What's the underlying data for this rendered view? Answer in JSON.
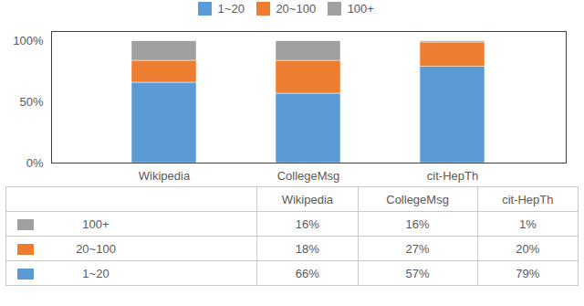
{
  "chart_data": {
    "type": "bar",
    "stacked": true,
    "categories": [
      "Wikipedia",
      "CollegeMsg",
      "cit-HepTh"
    ],
    "series": [
      {
        "name": "1~20",
        "color": "#5B9BD5",
        "values": [
          66,
          57,
          79
        ],
        "value_labels": [
          "66%",
          "57%",
          "79%"
        ]
      },
      {
        "name": "20~100",
        "color": "#ED7D31",
        "values": [
          18,
          27,
          20
        ],
        "value_labels": [
          "18%",
          "27%",
          "20%"
        ]
      },
      {
        "name": "100+",
        "color": "#a0a0a0",
        "values": [
          16,
          16,
          1
        ],
        "value_labels": [
          "16%",
          "16%",
          "1%"
        ]
      }
    ],
    "ylim": [
      0,
      108
    ],
    "yticks": [
      {
        "value": 0,
        "label": "0%"
      },
      {
        "value": 50,
        "label": "50%"
      },
      {
        "value": 100,
        "label": "100%"
      }
    ],
    "legend": "top",
    "grid": false
  }
}
